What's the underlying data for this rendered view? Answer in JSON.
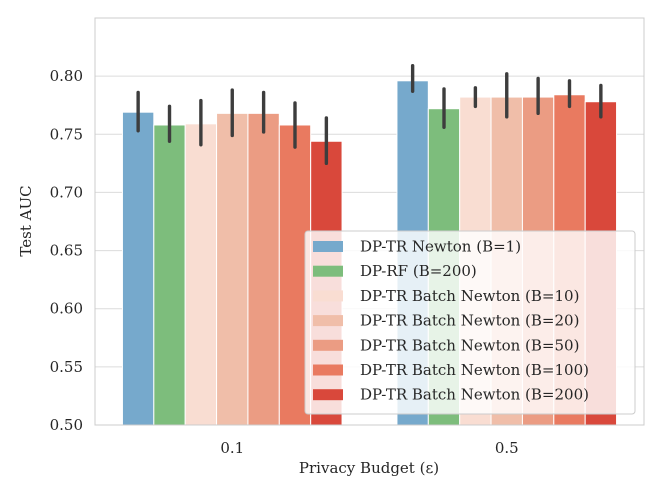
{
  "chart_data": {
    "type": "bar",
    "title": "",
    "xlabel": "Privacy Budget (ε)",
    "ylabel": "Test AUC",
    "categories": [
      "0.1",
      "0.5"
    ],
    "ylim": [
      0.5,
      0.85
    ],
    "yticks": [
      "0.50",
      "0.55",
      "0.60",
      "0.65",
      "0.70",
      "0.75",
      "0.80"
    ],
    "ytick_values": [
      0.5,
      0.55,
      0.6,
      0.65,
      0.7,
      0.75,
      0.8
    ],
    "grid": true,
    "legend_position": "lower-right",
    "series": [
      {
        "name": "DP-TR Newton  (B=1)",
        "color": "#76a9cc",
        "values": [
          0.769,
          0.796
        ],
        "err_low": [
          0.753,
          0.787
        ],
        "err_high": [
          0.786,
          0.809
        ]
      },
      {
        "name": "DP-RF  (B=200)",
        "color": "#7dbd7c",
        "values": [
          0.758,
          0.772
        ],
        "err_low": [
          0.744,
          0.756
        ],
        "err_high": [
          0.774,
          0.789
        ]
      },
      {
        "name": "DP-TR Batch Newton  (B=10)",
        "color": "#f9ddd2",
        "values": [
          0.759,
          0.782
        ],
        "err_low": [
          0.741,
          0.774
        ],
        "err_high": [
          0.779,
          0.79
        ]
      },
      {
        "name": "DP-TR Batch Newton  (B=20)",
        "color": "#f0bea9",
        "values": [
          0.768,
          0.782
        ],
        "err_low": [
          0.749,
          0.765
        ],
        "err_high": [
          0.788,
          0.802
        ]
      },
      {
        "name": "DP-TR Batch Newton  (B=50)",
        "color": "#eb9c83",
        "values": [
          0.768,
          0.782
        ],
        "err_low": [
          0.752,
          0.768
        ],
        "err_high": [
          0.786,
          0.798
        ]
      },
      {
        "name": "DP-TR Batch Newton  (B=100)",
        "color": "#e97a60",
        "values": [
          0.758,
          0.784
        ],
        "err_low": [
          0.739,
          0.774
        ],
        "err_high": [
          0.777,
          0.796
        ]
      },
      {
        "name": "DP-TR Batch Newton  (B=200)",
        "color": "#d9483b",
        "values": [
          0.744,
          0.778
        ],
        "err_low": [
          0.725,
          0.765
        ],
        "err_high": [
          0.764,
          0.792
        ]
      }
    ]
  }
}
